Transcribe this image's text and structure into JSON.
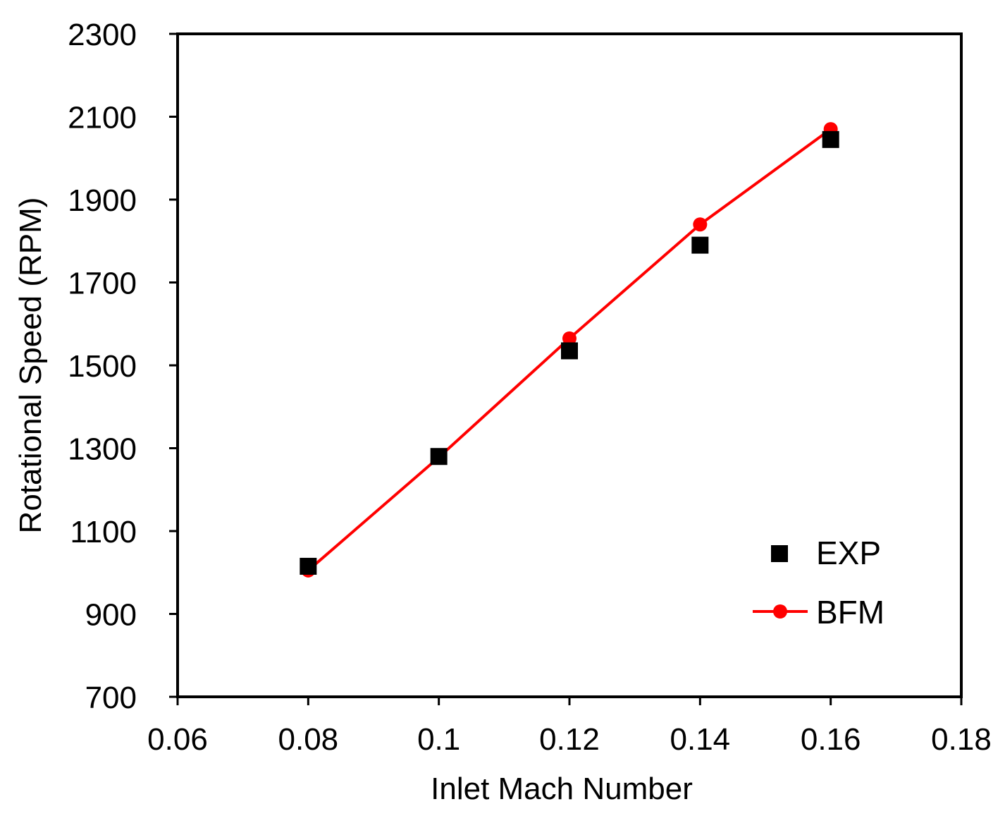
{
  "chart_data": {
    "type": "scatter",
    "title": "",
    "xlabel": "Inlet Mach Number",
    "ylabel": "Rotational Speed (RPM)",
    "xlim": [
      0.06,
      0.18
    ],
    "ylim": [
      700,
      2300
    ],
    "xticks": [
      0.06,
      0.08,
      0.1,
      0.12,
      0.14,
      0.16,
      0.18
    ],
    "xtick_labels": [
      "0.06",
      "0.08",
      "0.1",
      "0.12",
      "0.14",
      "0.16",
      "0.18"
    ],
    "yticks": [
      700,
      900,
      1100,
      1300,
      1500,
      1700,
      1900,
      2100,
      2300
    ],
    "ytick_labels": [
      "700",
      "900",
      "1100",
      "1300",
      "1500",
      "1700",
      "1900",
      "2100",
      "2300"
    ],
    "grid": false,
    "legend_position": "bottom-right",
    "series": [
      {
        "name": "EXP",
        "style": "square-markers",
        "color": "#000000",
        "x": [
          0.08,
          0.1,
          0.12,
          0.14,
          0.16
        ],
        "y": [
          1015,
          1280,
          1535,
          1790,
          2045
        ]
      },
      {
        "name": "BFM",
        "style": "line-with-circle-markers",
        "color": "#ff0000",
        "x": [
          0.08,
          0.1,
          0.12,
          0.14,
          0.16
        ],
        "y": [
          1005,
          1278,
          1565,
          1840,
          2070
        ]
      }
    ]
  }
}
